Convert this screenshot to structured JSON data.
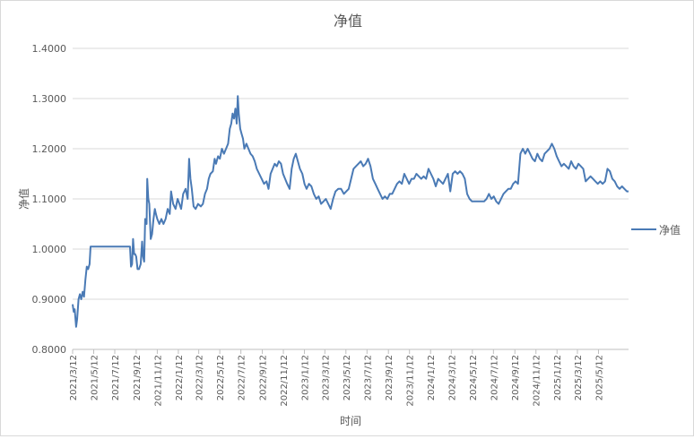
{
  "chart_data": {
    "type": "line",
    "title": "净值",
    "xlabel": "时间",
    "ylabel": "净值",
    "ylim": [
      0.8,
      1.4
    ],
    "y_ticks": [
      "0.8000",
      "0.9000",
      "1.0000",
      "1.1000",
      "1.2000",
      "1.3000",
      "1.4000"
    ],
    "x_range": [
      "2021-03-12",
      "2025-08-07"
    ],
    "x_ticks": [
      "2021/3/12",
      "2021/5/12",
      "2021/7/12",
      "2021/9/12",
      "2021/11/12",
      "2022/1/12",
      "2022/3/12",
      "2022/5/12",
      "2022/7/12",
      "2022/9/12",
      "2022/11/12",
      "2023/1/12",
      "2023/3/12",
      "2023/5/12",
      "2023/7/12",
      "2023/9/12",
      "2023/11/12",
      "2024/1/12",
      "2024/3/12",
      "2024/5/12",
      "2024/7/12",
      "2024/9/12",
      "2024/11/12",
      "2025/1/12",
      "2025/3/12",
      "2025/5/12"
    ],
    "grid": true,
    "legend": "right",
    "series": [
      {
        "name": "净值",
        "color": "#4a7ab5",
        "points": [
          [
            "2021-03-12",
            0.89
          ],
          [
            "2021-03-15",
            0.875
          ],
          [
            "2021-03-18",
            0.88
          ],
          [
            "2021-03-22",
            0.845
          ],
          [
            "2021-03-25",
            0.86
          ],
          [
            "2021-03-29",
            0.9
          ],
          [
            "2021-04-02",
            0.91
          ],
          [
            "2021-04-06",
            0.9
          ],
          [
            "2021-04-10",
            0.915
          ],
          [
            "2021-04-14",
            0.905
          ],
          [
            "2021-04-18",
            0.94
          ],
          [
            "2021-04-22",
            0.965
          ],
          [
            "2021-04-26",
            0.96
          ],
          [
            "2021-04-30",
            0.97
          ],
          [
            "2021-05-03",
            1.005
          ],
          [
            "2021-05-20",
            1.005
          ],
          [
            "2021-06-10",
            1.005
          ],
          [
            "2021-07-01",
            1.005
          ],
          [
            "2021-07-20",
            1.005
          ],
          [
            "2021-08-10",
            1.005
          ],
          [
            "2021-08-25",
            1.005
          ],
          [
            "2021-08-28",
            0.965
          ],
          [
            "2021-08-31",
            0.97
          ],
          [
            "2021-09-03",
            1.02
          ],
          [
            "2021-09-06",
            0.99
          ],
          [
            "2021-09-09",
            0.99
          ],
          [
            "2021-09-12",
            0.985
          ],
          [
            "2021-09-16",
            0.96
          ],
          [
            "2021-09-20",
            0.96
          ],
          [
            "2021-09-25",
            0.97
          ],
          [
            "2021-09-29",
            1.015
          ],
          [
            "2021-10-02",
            0.985
          ],
          [
            "2021-10-05",
            0.975
          ],
          [
            "2021-10-08",
            1.06
          ],
          [
            "2021-10-12",
            1.05
          ],
          [
            "2021-10-14",
            1.14
          ],
          [
            "2021-10-17",
            1.1
          ],
          [
            "2021-10-20",
            1.09
          ],
          [
            "2021-10-24",
            1.02
          ],
          [
            "2021-10-28",
            1.03
          ],
          [
            "2021-11-01",
            1.06
          ],
          [
            "2021-11-05",
            1.08
          ],
          [
            "2021-11-08",
            1.07
          ],
          [
            "2021-11-12",
            1.06
          ],
          [
            "2021-11-18",
            1.05
          ],
          [
            "2021-11-24",
            1.06
          ],
          [
            "2021-11-30",
            1.05
          ],
          [
            "2021-12-06",
            1.06
          ],
          [
            "2021-12-12",
            1.08
          ],
          [
            "2021-12-18",
            1.07
          ],
          [
            "2021-12-22",
            1.115
          ],
          [
            "2021-12-28",
            1.09
          ],
          [
            "2022-01-04",
            1.08
          ],
          [
            "2022-01-10",
            1.1
          ],
          [
            "2022-01-15",
            1.09
          ],
          [
            "2022-01-20",
            1.08
          ],
          [
            "2022-01-26",
            1.11
          ],
          [
            "2022-02-02",
            1.12
          ],
          [
            "2022-02-08",
            1.1
          ],
          [
            "2022-02-12",
            1.18
          ],
          [
            "2022-02-16",
            1.14
          ],
          [
            "2022-02-20",
            1.12
          ],
          [
            "2022-02-25",
            1.085
          ],
          [
            "2022-03-03",
            1.08
          ],
          [
            "2022-03-10",
            1.09
          ],
          [
            "2022-03-18",
            1.085
          ],
          [
            "2022-03-24",
            1.09
          ],
          [
            "2022-03-30",
            1.11
          ],
          [
            "2022-04-05",
            1.12
          ],
          [
            "2022-04-10",
            1.14
          ],
          [
            "2022-04-15",
            1.15
          ],
          [
            "2022-04-22",
            1.155
          ],
          [
            "2022-04-27",
            1.18
          ],
          [
            "2022-05-01",
            1.17
          ],
          [
            "2022-05-07",
            1.185
          ],
          [
            "2022-05-12",
            1.18
          ],
          [
            "2022-05-18",
            1.2
          ],
          [
            "2022-05-24",
            1.19
          ],
          [
            "2022-05-30",
            1.2
          ],
          [
            "2022-06-05",
            1.21
          ],
          [
            "2022-06-10",
            1.24
          ],
          [
            "2022-06-14",
            1.25
          ],
          [
            "2022-06-18",
            1.27
          ],
          [
            "2022-06-22",
            1.26
          ],
          [
            "2022-06-26",
            1.28
          ],
          [
            "2022-06-30",
            1.25
          ],
          [
            "2022-07-03",
            1.305
          ],
          [
            "2022-07-06",
            1.27
          ],
          [
            "2022-07-10",
            1.24
          ],
          [
            "2022-07-14",
            1.23
          ],
          [
            "2022-07-18",
            1.22
          ],
          [
            "2022-07-22",
            1.2
          ],
          [
            "2022-07-28",
            1.21
          ],
          [
            "2022-08-03",
            1.2
          ],
          [
            "2022-08-09",
            1.19
          ],
          [
            "2022-08-15",
            1.185
          ],
          [
            "2022-08-21",
            1.175
          ],
          [
            "2022-08-27",
            1.16
          ],
          [
            "2022-09-03",
            1.15
          ],
          [
            "2022-09-10",
            1.14
          ],
          [
            "2022-09-17",
            1.13
          ],
          [
            "2022-09-24",
            1.135
          ],
          [
            "2022-09-30",
            1.12
          ],
          [
            "2022-10-06",
            1.15
          ],
          [
            "2022-10-12",
            1.16
          ],
          [
            "2022-10-18",
            1.17
          ],
          [
            "2022-10-24",
            1.165
          ],
          [
            "2022-10-30",
            1.175
          ],
          [
            "2022-11-05",
            1.17
          ],
          [
            "2022-11-11",
            1.15
          ],
          [
            "2022-11-17",
            1.14
          ],
          [
            "2022-11-23",
            1.13
          ],
          [
            "2022-11-30",
            1.12
          ],
          [
            "2022-12-06",
            1.16
          ],
          [
            "2022-12-12",
            1.18
          ],
          [
            "2022-12-18",
            1.19
          ],
          [
            "2022-12-24",
            1.175
          ],
          [
            "2022-12-30",
            1.16
          ],
          [
            "2023-01-06",
            1.15
          ],
          [
            "2023-01-12",
            1.13
          ],
          [
            "2023-01-18",
            1.12
          ],
          [
            "2023-01-25",
            1.13
          ],
          [
            "2023-02-01",
            1.125
          ],
          [
            "2023-02-08",
            1.11
          ],
          [
            "2023-02-15",
            1.1
          ],
          [
            "2023-02-22",
            1.105
          ],
          [
            "2023-03-01",
            1.09
          ],
          [
            "2023-03-08",
            1.095
          ],
          [
            "2023-03-15",
            1.1
          ],
          [
            "2023-03-22",
            1.09
          ],
          [
            "2023-03-29",
            1.08
          ],
          [
            "2023-04-05",
            1.1
          ],
          [
            "2023-04-12",
            1.115
          ],
          [
            "2023-04-20",
            1.12
          ],
          [
            "2023-04-28",
            1.12
          ],
          [
            "2023-05-06",
            1.11
          ],
          [
            "2023-05-13",
            1.115
          ],
          [
            "2023-05-20",
            1.12
          ],
          [
            "2023-05-27",
            1.14
          ],
          [
            "2023-06-03",
            1.16
          ],
          [
            "2023-06-10",
            1.165
          ],
          [
            "2023-06-17",
            1.17
          ],
          [
            "2023-06-24",
            1.175
          ],
          [
            "2023-07-01",
            1.165
          ],
          [
            "2023-07-08",
            1.17
          ],
          [
            "2023-07-15",
            1.18
          ],
          [
            "2023-07-22",
            1.165
          ],
          [
            "2023-07-29",
            1.14
          ],
          [
            "2023-08-05",
            1.13
          ],
          [
            "2023-08-12",
            1.12
          ],
          [
            "2023-08-19",
            1.11
          ],
          [
            "2023-08-26",
            1.1
          ],
          [
            "2023-09-02",
            1.105
          ],
          [
            "2023-09-09",
            1.1
          ],
          [
            "2023-09-16",
            1.11
          ],
          [
            "2023-09-23",
            1.11
          ],
          [
            "2023-09-30",
            1.12
          ],
          [
            "2023-10-07",
            1.13
          ],
          [
            "2023-10-14",
            1.135
          ],
          [
            "2023-10-21",
            1.13
          ],
          [
            "2023-10-28",
            1.15
          ],
          [
            "2023-11-04",
            1.14
          ],
          [
            "2023-11-11",
            1.13
          ],
          [
            "2023-11-18",
            1.14
          ],
          [
            "2023-11-25",
            1.14
          ],
          [
            "2023-12-02",
            1.15
          ],
          [
            "2023-12-09",
            1.145
          ],
          [
            "2023-12-16",
            1.14
          ],
          [
            "2023-12-23",
            1.145
          ],
          [
            "2023-12-30",
            1.14
          ],
          [
            "2024-01-06",
            1.16
          ],
          [
            "2024-01-13",
            1.15
          ],
          [
            "2024-01-20",
            1.14
          ],
          [
            "2024-01-27",
            1.125
          ],
          [
            "2024-02-03",
            1.14
          ],
          [
            "2024-02-10",
            1.135
          ],
          [
            "2024-02-17",
            1.13
          ],
          [
            "2024-02-24",
            1.14
          ],
          [
            "2024-03-02",
            1.15
          ],
          [
            "2024-03-09",
            1.115
          ],
          [
            "2024-03-16",
            1.15
          ],
          [
            "2024-03-23",
            1.155
          ],
          [
            "2024-03-30",
            1.15
          ],
          [
            "2024-04-06",
            1.155
          ],
          [
            "2024-04-13",
            1.15
          ],
          [
            "2024-04-20",
            1.14
          ],
          [
            "2024-04-27",
            1.11
          ],
          [
            "2024-05-04",
            1.1
          ],
          [
            "2024-05-11",
            1.095
          ],
          [
            "2024-05-18",
            1.095
          ],
          [
            "2024-05-25",
            1.095
          ],
          [
            "2024-06-01",
            1.095
          ],
          [
            "2024-06-08",
            1.095
          ],
          [
            "2024-06-15",
            1.095
          ],
          [
            "2024-06-22",
            1.1
          ],
          [
            "2024-06-29",
            1.11
          ],
          [
            "2024-07-06",
            1.1
          ],
          [
            "2024-07-13",
            1.105
          ],
          [
            "2024-07-20",
            1.095
          ],
          [
            "2024-07-27",
            1.09
          ],
          [
            "2024-08-03",
            1.1
          ],
          [
            "2024-08-10",
            1.11
          ],
          [
            "2024-08-17",
            1.115
          ],
          [
            "2024-08-24",
            1.12
          ],
          [
            "2024-08-31",
            1.12
          ],
          [
            "2024-09-07",
            1.13
          ],
          [
            "2024-09-14",
            1.135
          ],
          [
            "2024-09-21",
            1.13
          ],
          [
            "2024-09-28",
            1.19
          ],
          [
            "2024-10-05",
            1.2
          ],
          [
            "2024-10-12",
            1.19
          ],
          [
            "2024-10-19",
            1.2
          ],
          [
            "2024-10-26",
            1.19
          ],
          [
            "2024-11-02",
            1.18
          ],
          [
            "2024-11-09",
            1.175
          ],
          [
            "2024-11-16",
            1.19
          ],
          [
            "2024-11-23",
            1.18
          ],
          [
            "2024-11-30",
            1.175
          ],
          [
            "2024-12-07",
            1.19
          ],
          [
            "2024-12-14",
            1.195
          ],
          [
            "2024-12-21",
            1.2
          ],
          [
            "2024-12-28",
            1.21
          ],
          [
            "2025-01-04",
            1.2
          ],
          [
            "2025-01-11",
            1.185
          ],
          [
            "2025-01-18",
            1.175
          ],
          [
            "2025-01-25",
            1.165
          ],
          [
            "2025-02-01",
            1.17
          ],
          [
            "2025-02-08",
            1.165
          ],
          [
            "2025-02-15",
            1.16
          ],
          [
            "2025-02-22",
            1.175
          ],
          [
            "2025-03-01",
            1.165
          ],
          [
            "2025-03-08",
            1.16
          ],
          [
            "2025-03-15",
            1.17
          ],
          [
            "2025-03-22",
            1.165
          ],
          [
            "2025-03-29",
            1.16
          ],
          [
            "2025-04-05",
            1.135
          ],
          [
            "2025-04-12",
            1.14
          ],
          [
            "2025-04-19",
            1.145
          ],
          [
            "2025-04-26",
            1.14
          ],
          [
            "2025-05-03",
            1.135
          ],
          [
            "2025-05-10",
            1.13
          ],
          [
            "2025-05-17",
            1.135
          ],
          [
            "2025-05-24",
            1.13
          ],
          [
            "2025-05-31",
            1.135
          ],
          [
            "2025-06-07",
            1.16
          ],
          [
            "2025-06-14",
            1.155
          ],
          [
            "2025-06-21",
            1.14
          ],
          [
            "2025-06-28",
            1.135
          ],
          [
            "2025-07-05",
            1.125
          ],
          [
            "2025-07-12",
            1.12
          ],
          [
            "2025-07-19",
            1.125
          ],
          [
            "2025-07-26",
            1.12
          ],
          [
            "2025-08-02",
            1.115
          ],
          [
            "2025-08-07",
            1.115
          ]
        ]
      }
    ]
  }
}
